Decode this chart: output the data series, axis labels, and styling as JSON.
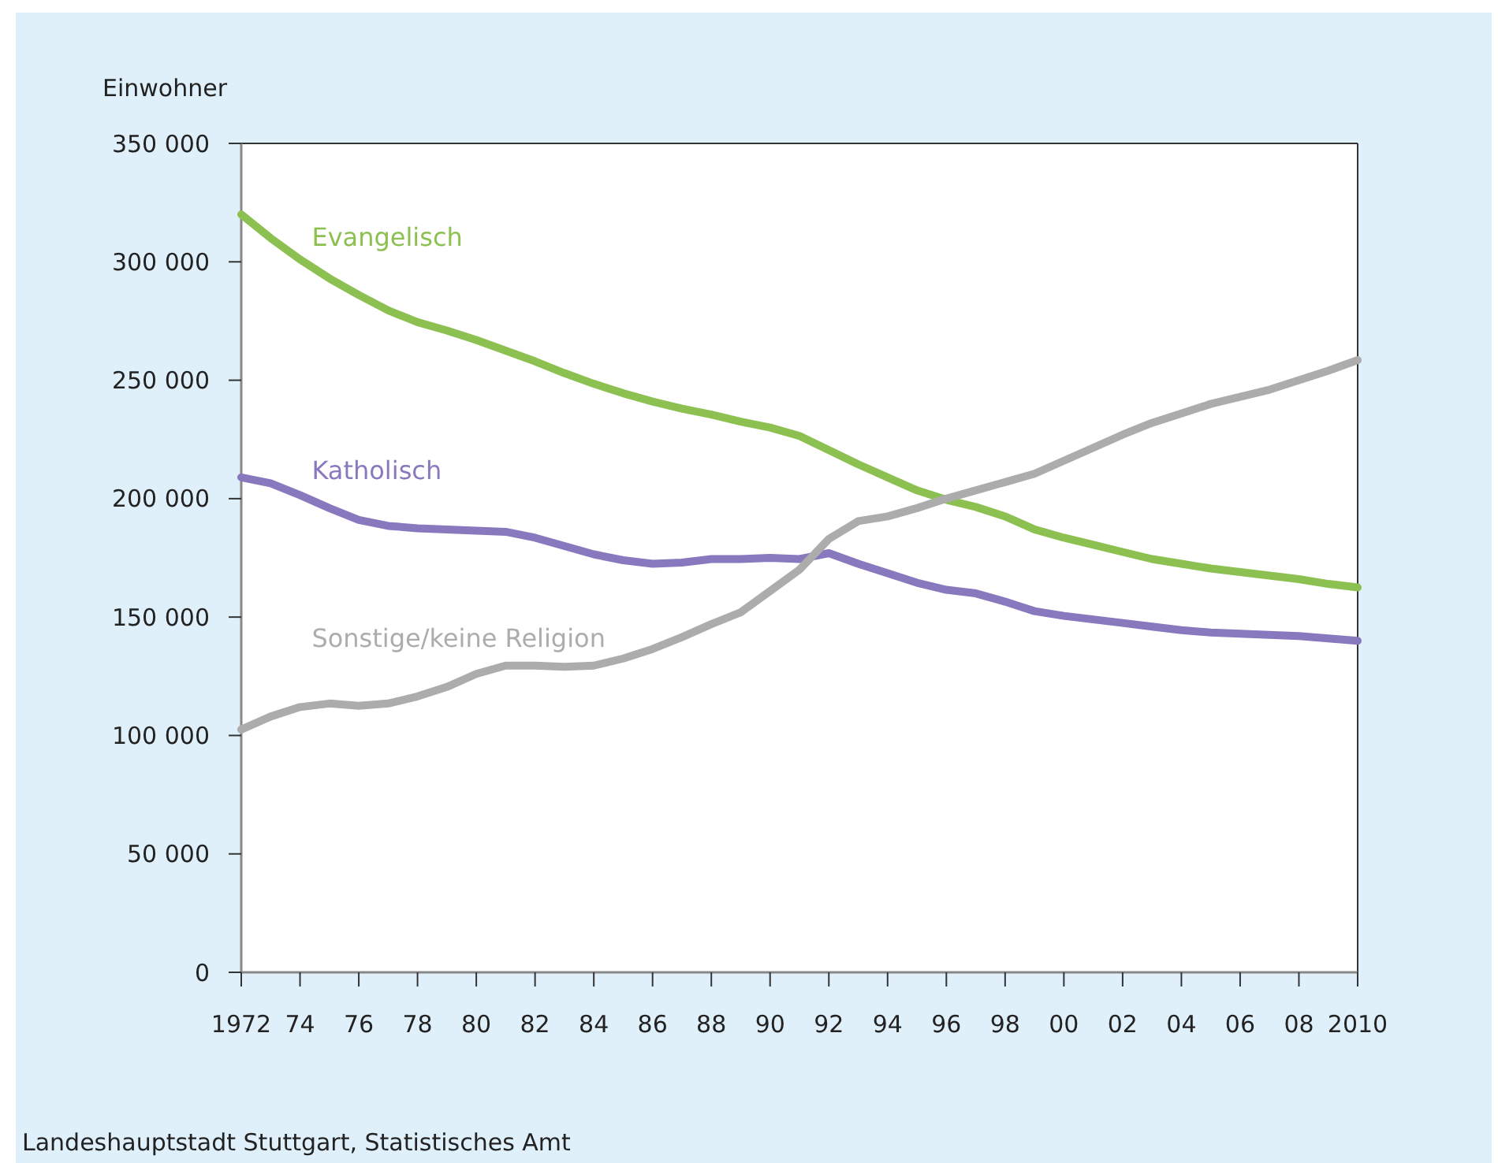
{
  "chart_data": {
    "type": "line",
    "ylabel": "Einwohner",
    "x": [
      1972,
      1973,
      1974,
      1975,
      1976,
      1977,
      1978,
      1979,
      1980,
      1981,
      1982,
      1983,
      1984,
      1985,
      1986,
      1987,
      1988,
      1989,
      1990,
      1991,
      1992,
      1993,
      1994,
      1995,
      1996,
      1997,
      1998,
      1999,
      2000,
      2001,
      2002,
      2003,
      2004,
      2005,
      2006,
      2007,
      2008,
      2009,
      2010
    ],
    "series": [
      {
        "name": "Evangelisch",
        "color": "#8cc152",
        "values": [
          320000,
          310000,
          301000,
          293000,
          286000,
          279500,
          274500,
          271000,
          267000,
          262500,
          258000,
          253000,
          248500,
          244500,
          241000,
          238000,
          235500,
          232500,
          230000,
          226500,
          220500,
          214500,
          209000,
          203500,
          199500,
          196500,
          192500,
          187000,
          183500,
          180500,
          177500,
          174500,
          172500,
          170500,
          169000,
          167500,
          166000,
          164000,
          162500
        ]
      },
      {
        "name": "Katholisch",
        "color": "#8878be",
        "values": [
          209000,
          206500,
          201500,
          196000,
          191000,
          188500,
          187500,
          187000,
          186500,
          186000,
          183500,
          180000,
          176500,
          174000,
          172500,
          173000,
          174500,
          174500,
          175000,
          174500,
          177000,
          172500,
          168500,
          164500,
          161500,
          160000,
          156500,
          152500,
          150500,
          149000,
          147500,
          146000,
          144500,
          143500,
          143000,
          142500,
          142000,
          141000,
          140000
        ]
      },
      {
        "name": "Sonstige/keine Religion",
        "color": "#acacac",
        "values": [
          102500,
          108000,
          112000,
          113500,
          112500,
          113500,
          116500,
          120500,
          126000,
          129500,
          129500,
          129000,
          129500,
          132500,
          136500,
          141500,
          147000,
          152000,
          161000,
          170000,
          183000,
          190500,
          192500,
          196000,
          200000,
          203500,
          207000,
          210500,
          216000,
          221500,
          227000,
          232000,
          236000,
          240000,
          243000,
          246000,
          250000,
          254000,
          258500
        ]
      }
    ],
    "xlim": [
      1972,
      2010
    ],
    "xticks": [
      {
        "value": 1972,
        "label": "1972"
      },
      {
        "value": 1974,
        "label": "74"
      },
      {
        "value": 1976,
        "label": "76"
      },
      {
        "value": 1978,
        "label": "78"
      },
      {
        "value": 1980,
        "label": "80"
      },
      {
        "value": 1982,
        "label": "82"
      },
      {
        "value": 1984,
        "label": "84"
      },
      {
        "value": 1986,
        "label": "86"
      },
      {
        "value": 1988,
        "label": "88"
      },
      {
        "value": 1990,
        "label": "90"
      },
      {
        "value": 1992,
        "label": "92"
      },
      {
        "value": 1994,
        "label": "94"
      },
      {
        "value": 1996,
        "label": "96"
      },
      {
        "value": 1998,
        "label": "98"
      },
      {
        "value": 2000,
        "label": "00"
      },
      {
        "value": 2002,
        "label": "02"
      },
      {
        "value": 2004,
        "label": "04"
      },
      {
        "value": 2006,
        "label": "06"
      },
      {
        "value": 2008,
        "label": "08"
      },
      {
        "value": 2010,
        "label": "2010"
      }
    ],
    "ylim": [
      0,
      350000
    ],
    "yticks": [
      {
        "value": 0,
        "label": "0"
      },
      {
        "value": 50000,
        "label": "50 000"
      },
      {
        "value": 100000,
        "label": "100 000"
      },
      {
        "value": 150000,
        "label": "150 000"
      },
      {
        "value": 200000,
        "label": "200 000"
      },
      {
        "value": 250000,
        "label": "250 000"
      },
      {
        "value": 300000,
        "label": "300 000"
      },
      {
        "value": 350000,
        "label": "350 000"
      }
    ],
    "grid": false,
    "legend": false,
    "marker": "none",
    "line_style": "solid",
    "annotations": [
      "Landeshauptstadt Stuttgart, Statistisches Amt"
    ]
  }
}
